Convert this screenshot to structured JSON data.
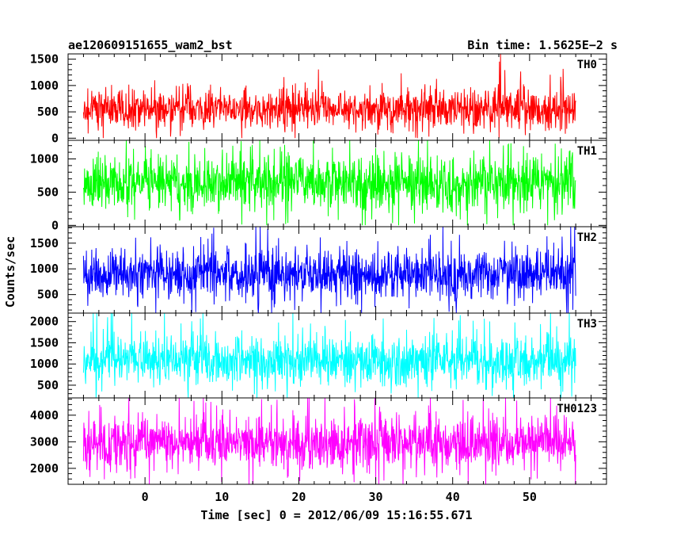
{
  "chart_data": {
    "type": "line",
    "title": "ae120609151655_wam2_bst",
    "bin_time_label": "Bin time: 1.5625E−2 s",
    "xlabel": "Time [sec] 0 = 2012/06/09 15:16:55.671",
    "ylabel": "Counts/sec",
    "xlim": [
      -10,
      60
    ],
    "x_data_range": [
      -8.0,
      56.0
    ],
    "x_ticks": [
      0,
      10,
      20,
      30,
      40,
      50
    ],
    "x_tick_labels": [
      "0",
      "10",
      "20",
      "30",
      "40",
      "50"
    ],
    "grid": false,
    "panels": [
      {
        "name": "TH0",
        "color": "#ff0000",
        "ylim": [
          -40,
          1600
        ],
        "y_ticks": [
          0,
          500,
          1000,
          1500
        ],
        "y_tick_labels": [
          "0",
          "500",
          "1000",
          "1500"
        ],
        "mean": 560,
        "spread": 330,
        "min": 0,
        "max": 1600
      },
      {
        "name": "TH1",
        "color": "#00ff00",
        "ylim": [
          -20,
          1280
        ],
        "y_ticks": [
          0,
          500,
          1000
        ],
        "y_tick_labels": [
          "0",
          "500",
          "1000"
        ],
        "mean": 640,
        "spread": 380,
        "min": 0,
        "max": 1280
      },
      {
        "name": "TH2",
        "color": "#0000ff",
        "ylim": [
          140,
          1820
        ],
        "y_ticks": [
          500,
          1000,
          1500
        ],
        "y_tick_labels": [
          "500",
          "1000",
          "1500"
        ],
        "mean": 900,
        "spread": 440,
        "min": 140,
        "max": 1820
      },
      {
        "name": "TH3",
        "color": "#00ffff",
        "ylim": [
          200,
          2200
        ],
        "y_ticks": [
          500,
          1000,
          1500,
          2000
        ],
        "y_tick_labels": [
          "500",
          "1000",
          "1500",
          "2000"
        ],
        "mean": 1080,
        "spread": 520,
        "min": 200,
        "max": 2200
      },
      {
        "name": "TH0123",
        "color": "#ff00ff",
        "ylim": [
          1400,
          4650
        ],
        "y_ticks": [
          2000,
          3000,
          4000
        ],
        "y_tick_labels": [
          "2000",
          "3000",
          "4000"
        ],
        "mean": 2950,
        "spread": 900,
        "min": 1400,
        "max": 4650
      }
    ]
  }
}
